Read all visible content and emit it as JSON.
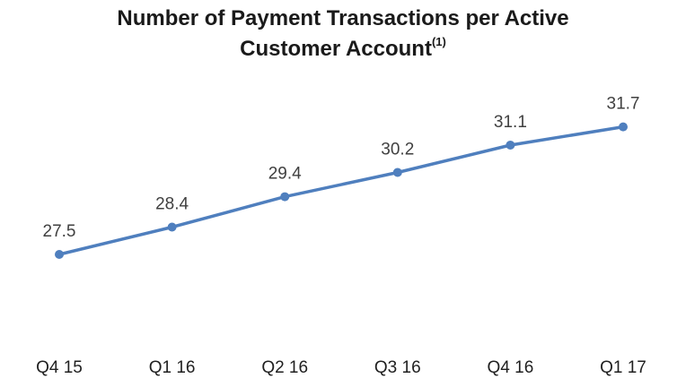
{
  "chart_data": {
    "type": "line",
    "title": {
      "line1": "Number of Payment Transactions  per Active",
      "line2": "Customer Account",
      "footnote_mark": "(1)"
    },
    "categories": [
      "Q4 15",
      "Q1 16",
      "Q2 16",
      "Q3 16",
      "Q4 16",
      "Q1 17"
    ],
    "series": [
      {
        "values": [
          27.5,
          28.4,
          29.4,
          30.2,
          31.1,
          31.7
        ],
        "labels": [
          "27.5",
          "28.4",
          "29.4",
          "30.2",
          "31.1",
          "31.7"
        ]
      }
    ],
    "xlabel": "",
    "ylabel": "",
    "y_axis_visible": false,
    "grid": false,
    "legend": "none",
    "line_color": "#4f7fbe"
  }
}
